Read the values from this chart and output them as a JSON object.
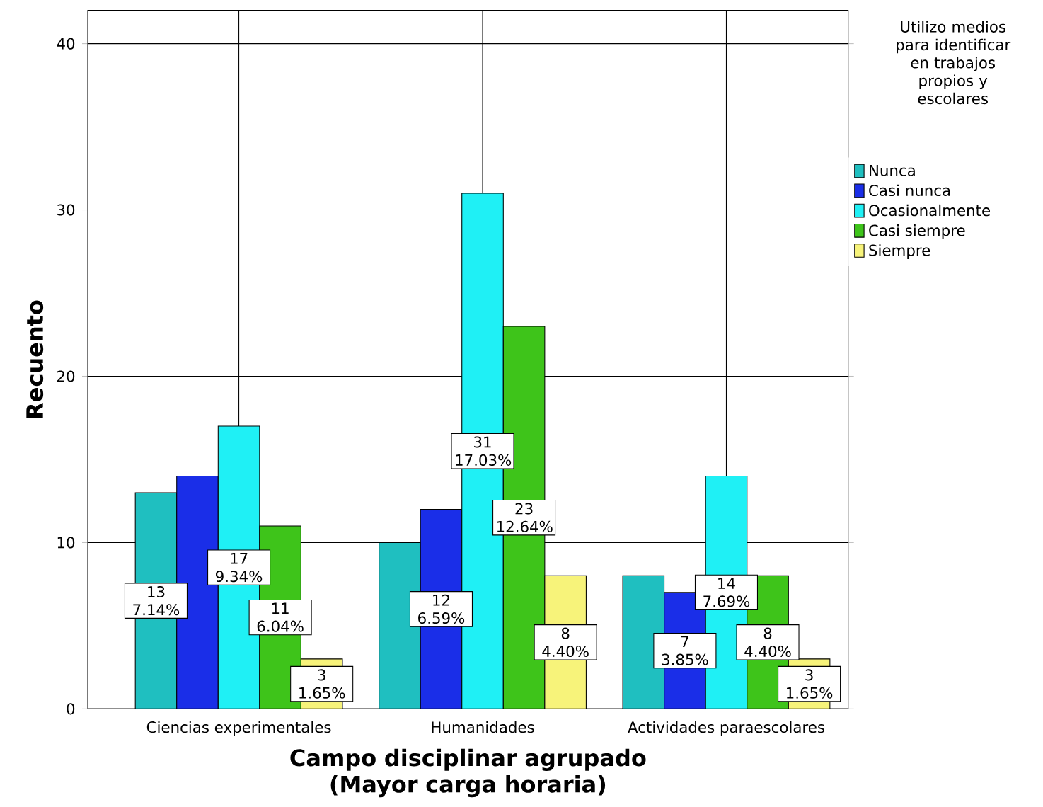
{
  "chart_data": {
    "type": "bar",
    "xlabel": "Campo disciplinar agrupado (Mayor carga horaria)",
    "ylabel": "Recuento",
    "legend_title": "Utilizo medios para identificar en trabajos propios y escolares",
    "categories": [
      "Ciencias experimentales",
      "Humanidades",
      "Actividades paraescolares"
    ],
    "series": [
      {
        "name": "Nunca",
        "color": "#1fbfc0",
        "values": [
          13,
          10,
          8
        ],
        "value_labels": [
          "13 7.14%",
          null,
          null
        ]
      },
      {
        "name": "Casi nunca",
        "color": "#1a2ee8",
        "values": [
          14,
          12,
          7
        ],
        "value_labels": [
          null,
          "12 6.59%",
          "7 3.85%"
        ]
      },
      {
        "name": "Ocasionalmente",
        "color": "#1ff0f5",
        "values": [
          17,
          31,
          14
        ],
        "value_labels": [
          "17 9.34%",
          "31 17.03%",
          "14 7.69%"
        ]
      },
      {
        "name": "Casi siempre",
        "color": "#3ec41a",
        "values": [
          11,
          23,
          8
        ],
        "value_labels": [
          "11 6.04%",
          "23 12.64%",
          "8 4.40%"
        ]
      },
      {
        "name": "Siempre",
        "color": "#f7f37a",
        "values": [
          3,
          8,
          3
        ],
        "value_labels": [
          "3 1.65%",
          "8 4.40%",
          "3 1.65%"
        ]
      }
    ],
    "ylim": [
      0,
      42
    ],
    "yticks": [
      0,
      10,
      20,
      30,
      40
    ],
    "grid": true,
    "legend": "right"
  }
}
